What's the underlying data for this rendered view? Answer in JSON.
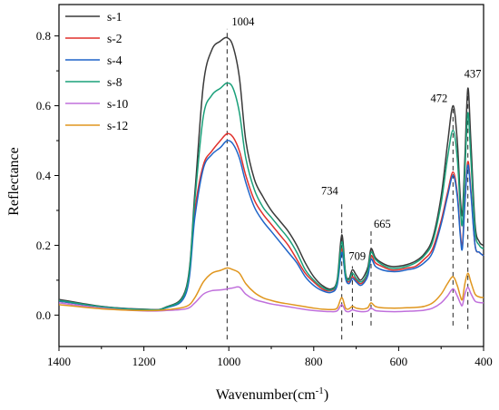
{
  "chart_data": {
    "type": "line",
    "xlabel": "Wavenumber(cm",
    "xlabel_sup": "-1",
    "xlabel_close": ")",
    "ylabel": "Reflectance",
    "xlim": [
      1400,
      400
    ],
    "x_reversed": true,
    "ylim": [
      -0.09,
      0.89
    ],
    "xticks": [
      1400,
      1200,
      1000,
      800,
      600,
      400
    ],
    "xtick_labels": [
      "1400",
      "1200",
      "1000",
      "800",
      "600",
      "400"
    ],
    "yticks": [
      0.0,
      0.2,
      0.4,
      0.6,
      0.8
    ],
    "ytick_labels": [
      "0.0",
      "0.2",
      "0.4",
      "0.6",
      "0.8"
    ],
    "grid": false,
    "legend_position": "top-left",
    "annotations": [
      {
        "x": 1004,
        "text": "1004",
        "line_from": -0.07,
        "line_to": 0.82
      },
      {
        "x": 734,
        "text": "734",
        "line_from": -0.07,
        "line_to": 0.32
      },
      {
        "x": 709,
        "text": "709",
        "line_from": -0.03,
        "line_to": 0.14
      },
      {
        "x": 665,
        "text": "665",
        "line_from": -0.03,
        "line_to": 0.24
      },
      {
        "x": 472,
        "text": "472",
        "line_from": -0.03,
        "line_to": 0.6
      },
      {
        "x": 437,
        "text": "437",
        "line_from": -0.04,
        "line_to": 0.66
      }
    ],
    "x": [
      1400,
      1300,
      1200,
      1150,
      1100,
      1080,
      1060,
      1040,
      1020,
      1004,
      990,
      975,
      960,
      940,
      920,
      900,
      880,
      860,
      840,
      820,
      800,
      780,
      760,
      745,
      734,
      725,
      717,
      709,
      700,
      690,
      680,
      672,
      665,
      655,
      640,
      620,
      600,
      580,
      560,
      540,
      520,
      500,
      485,
      472,
      462,
      455,
      450,
      444,
      437,
      430,
      420,
      410,
      400
    ],
    "series": [
      {
        "name": "s-1",
        "color": "#3a3a3a",
        "values": [
          0.045,
          0.025,
          0.017,
          0.022,
          0.08,
          0.35,
          0.66,
          0.76,
          0.785,
          0.795,
          0.77,
          0.68,
          0.5,
          0.39,
          0.34,
          0.3,
          0.27,
          0.24,
          0.2,
          0.15,
          0.11,
          0.085,
          0.075,
          0.1,
          0.23,
          0.12,
          0.105,
          0.13,
          0.115,
          0.1,
          0.115,
          0.14,
          0.19,
          0.165,
          0.15,
          0.14,
          0.14,
          0.145,
          0.155,
          0.175,
          0.22,
          0.34,
          0.49,
          0.6,
          0.5,
          0.34,
          0.29,
          0.45,
          0.65,
          0.5,
          0.26,
          0.21,
          0.2
        ]
      },
      {
        "name": "s-2",
        "color": "#e0302c",
        "values": [
          0.04,
          0.024,
          0.016,
          0.02,
          0.07,
          0.3,
          0.43,
          0.47,
          0.5,
          0.52,
          0.51,
          0.47,
          0.4,
          0.33,
          0.29,
          0.26,
          0.23,
          0.2,
          0.16,
          0.12,
          0.095,
          0.075,
          0.07,
          0.09,
          0.19,
          0.11,
          0.095,
          0.11,
          0.1,
          0.09,
          0.1,
          0.12,
          0.17,
          0.15,
          0.14,
          0.13,
          0.13,
          0.135,
          0.14,
          0.16,
          0.19,
          0.27,
          0.35,
          0.41,
          0.35,
          0.24,
          0.2,
          0.33,
          0.44,
          0.36,
          0.2,
          0.18,
          0.17
        ]
      },
      {
        "name": "s-4",
        "color": "#1e64c8",
        "values": [
          0.04,
          0.024,
          0.016,
          0.02,
          0.065,
          0.28,
          0.42,
          0.46,
          0.48,
          0.5,
          0.49,
          0.45,
          0.38,
          0.31,
          0.27,
          0.24,
          0.21,
          0.18,
          0.15,
          0.11,
          0.085,
          0.07,
          0.065,
          0.085,
          0.18,
          0.105,
          0.09,
          0.105,
          0.095,
          0.085,
          0.095,
          0.115,
          0.16,
          0.14,
          0.13,
          0.125,
          0.125,
          0.13,
          0.135,
          0.15,
          0.18,
          0.26,
          0.34,
          0.4,
          0.34,
          0.23,
          0.19,
          0.32,
          0.43,
          0.35,
          0.2,
          0.18,
          0.17
        ]
      },
      {
        "name": "s-8",
        "color": "#1aa07a",
        "values": [
          0.042,
          0.024,
          0.016,
          0.021,
          0.075,
          0.33,
          0.57,
          0.63,
          0.65,
          0.665,
          0.65,
          0.58,
          0.45,
          0.36,
          0.31,
          0.28,
          0.25,
          0.22,
          0.18,
          0.13,
          0.1,
          0.08,
          0.072,
          0.095,
          0.21,
          0.115,
          0.1,
          0.12,
          0.105,
          0.095,
          0.105,
          0.13,
          0.18,
          0.16,
          0.145,
          0.135,
          0.135,
          0.14,
          0.15,
          0.17,
          0.21,
          0.32,
          0.45,
          0.53,
          0.45,
          0.31,
          0.26,
          0.41,
          0.58,
          0.45,
          0.24,
          0.2,
          0.19
        ]
      },
      {
        "name": "s-10",
        "color": "#c070dc",
        "values": [
          0.035,
          0.02,
          0.012,
          0.013,
          0.018,
          0.035,
          0.06,
          0.07,
          0.072,
          0.075,
          0.078,
          0.08,
          0.06,
          0.045,
          0.038,
          0.032,
          0.028,
          0.024,
          0.02,
          0.016,
          0.013,
          0.011,
          0.01,
          0.012,
          0.03,
          0.012,
          0.01,
          0.015,
          0.012,
          0.01,
          0.01,
          0.012,
          0.02,
          0.013,
          0.011,
          0.01,
          0.01,
          0.011,
          0.012,
          0.014,
          0.02,
          0.035,
          0.055,
          0.075,
          0.055,
          0.035,
          0.028,
          0.06,
          0.08,
          0.062,
          0.04,
          0.036,
          0.035
        ]
      },
      {
        "name": "s-12",
        "color": "#e0961e",
        "values": [
          0.03,
          0.018,
          0.013,
          0.015,
          0.025,
          0.05,
          0.095,
          0.12,
          0.128,
          0.135,
          0.13,
          0.12,
          0.09,
          0.065,
          0.05,
          0.042,
          0.036,
          0.032,
          0.028,
          0.024,
          0.02,
          0.017,
          0.016,
          0.02,
          0.05,
          0.02,
          0.018,
          0.025,
          0.02,
          0.018,
          0.018,
          0.022,
          0.035,
          0.025,
          0.021,
          0.02,
          0.02,
          0.021,
          0.022,
          0.025,
          0.035,
          0.06,
          0.09,
          0.11,
          0.085,
          0.055,
          0.045,
          0.09,
          0.12,
          0.095,
          0.06,
          0.052,
          0.05
        ]
      }
    ]
  }
}
